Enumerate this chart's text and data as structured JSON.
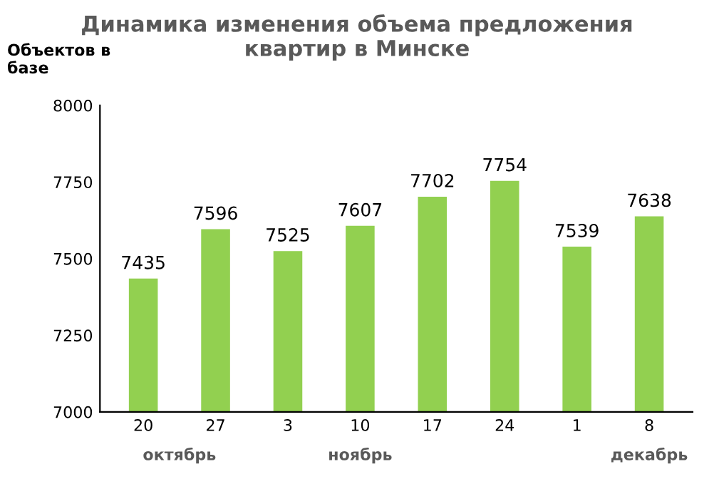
{
  "chart_data": {
    "type": "bar",
    "title": "Динамика изменения объема предложения\nквартир в Минске",
    "ylabel": "Объектов в\nбазе",
    "categories": [
      "20",
      "27",
      "3",
      "10",
      "17",
      "24",
      "1",
      "8"
    ],
    "values": [
      7435,
      7596,
      7525,
      7607,
      7702,
      7754,
      7539,
      7638
    ],
    "color": "#92d050",
    "ylim": [
      7000,
      8000
    ],
    "yticks": [
      7000,
      7250,
      7500,
      7750,
      8000
    ],
    "grid": false,
    "data_labels": true,
    "annotations": [
      "октябрь",
      "ноябрь",
      "декабрь"
    ]
  }
}
